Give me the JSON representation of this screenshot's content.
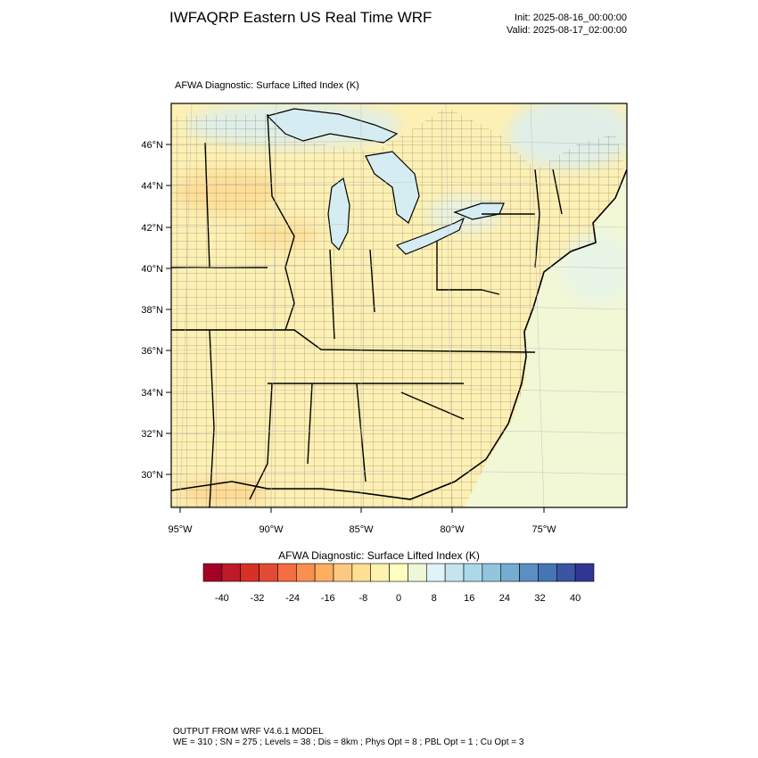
{
  "header": {
    "title": "IWFAQRP Eastern US Real Time WRF",
    "init": "Init: 2025-08-16_00:00:00",
    "valid": "Valid: 2025-08-17_02:00:00"
  },
  "map": {
    "subtitle": "AFWA Diagnostic: Surface Lifted Index   (K)",
    "lat_labels": [
      "46°N",
      "44°N",
      "42°N",
      "40°N",
      "38°N",
      "36°N",
      "34°N",
      "32°N",
      "30°N"
    ],
    "lon_labels": [
      "95°W",
      "90°W",
      "85°W",
      "80°W",
      "75°W"
    ],
    "colors": {
      "land_base": "#fdf0b4",
      "warm_patch": "#fcd88f",
      "ocean_base": "#f2f8d6",
      "cool_patch": "#d8eef4",
      "lakes": "#d6ecf3",
      "boundary": "#000000"
    }
  },
  "colorbar": {
    "title": "AFWA Diagnostic: Surface Lifted Index  (K)",
    "tick_labels": [
      "-40",
      "-32",
      "-24",
      "-16",
      "-8",
      "0",
      "8",
      "16",
      "24",
      "32",
      "40"
    ],
    "colors": [
      "#a50026",
      "#be1a28",
      "#d73027",
      "#e34a33",
      "#f46d43",
      "#f8904f",
      "#fdae61",
      "#fdc980",
      "#fee090",
      "#fff2b0",
      "#ffffbf",
      "#eef8d8",
      "#e0f3f8",
      "#c4e4ef",
      "#abd9e9",
      "#92c5de",
      "#74add1",
      "#5b8fc3",
      "#4575b4",
      "#3b54a4",
      "#313695"
    ]
  },
  "footer": {
    "line1": "OUTPUT FROM WRF V4.6.1 MODEL",
    "line2": "WE = 310 ; SN = 275 ; Levels = 38 ; Dis = 8km ; Phys Opt = 8 ; PBL Opt = 1 ; Cu Opt = 3"
  }
}
